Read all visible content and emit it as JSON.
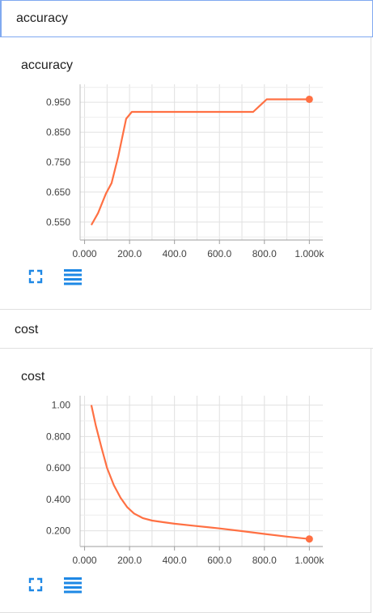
{
  "sections": [
    {
      "header": "accuracy",
      "chart_data": {
        "type": "line",
        "title": "accuracy",
        "xlim": [
          -20,
          1060
        ],
        "ylim": [
          0.49,
          1.01
        ],
        "x_ticks": [
          0,
          200,
          400,
          600,
          800,
          1000
        ],
        "x_tick_labels": [
          "0.000",
          "200.0",
          "400.0",
          "600.0",
          "800.0",
          "1.000k"
        ],
        "y_ticks": [
          0.55,
          0.65,
          0.75,
          0.85,
          0.95
        ],
        "y_tick_labels": [
          "0.550",
          "0.650",
          "0.750",
          "0.850",
          "0.950"
        ],
        "grid": true,
        "color": "#ff7043",
        "series": [
          {
            "x": [
              30,
              60,
              95,
              120,
              150,
              185,
              210,
              400,
              600,
              700,
              750,
              810,
              1000
            ],
            "y": [
              0.54,
              0.58,
              0.645,
              0.68,
              0.77,
              0.895,
              0.918,
              0.918,
              0.918,
              0.918,
              0.918,
              0.96,
              0.96
            ]
          }
        ],
        "last_point": {
          "x": 1000,
          "y": 0.96
        }
      }
    },
    {
      "header": "cost",
      "chart_data": {
        "type": "line",
        "title": "cost",
        "xlim": [
          -20,
          1060
        ],
        "ylim": [
          0.1,
          1.06
        ],
        "x_ticks": [
          0,
          200,
          400,
          600,
          800,
          1000
        ],
        "x_tick_labels": [
          "0.000",
          "200.0",
          "400.0",
          "600.0",
          "800.0",
          "1.000k"
        ],
        "y_ticks": [
          0.2,
          0.4,
          0.6,
          0.8,
          1.0
        ],
        "y_tick_labels": [
          "0.200",
          "0.400",
          "0.600",
          "0.800",
          "1.00"
        ],
        "grid": true,
        "color": "#ff7043",
        "series": [
          {
            "x": [
              30,
              50,
              75,
              100,
              130,
              160,
              190,
              220,
              260,
              300,
              350,
              400,
              500,
              600,
              700,
              800,
              900,
              1000
            ],
            "y": [
              1.0,
              0.87,
              0.73,
              0.6,
              0.49,
              0.41,
              0.35,
              0.31,
              0.28,
              0.265,
              0.255,
              0.245,
              0.23,
              0.215,
              0.198,
              0.18,
              0.163,
              0.148
            ]
          }
        ],
        "last_point": {
          "x": 1000,
          "y": 0.148
        }
      }
    }
  ],
  "icons": {
    "expand": "fullscreen-icon",
    "data": "list-icon",
    "icon_color": "#1e88e5"
  }
}
